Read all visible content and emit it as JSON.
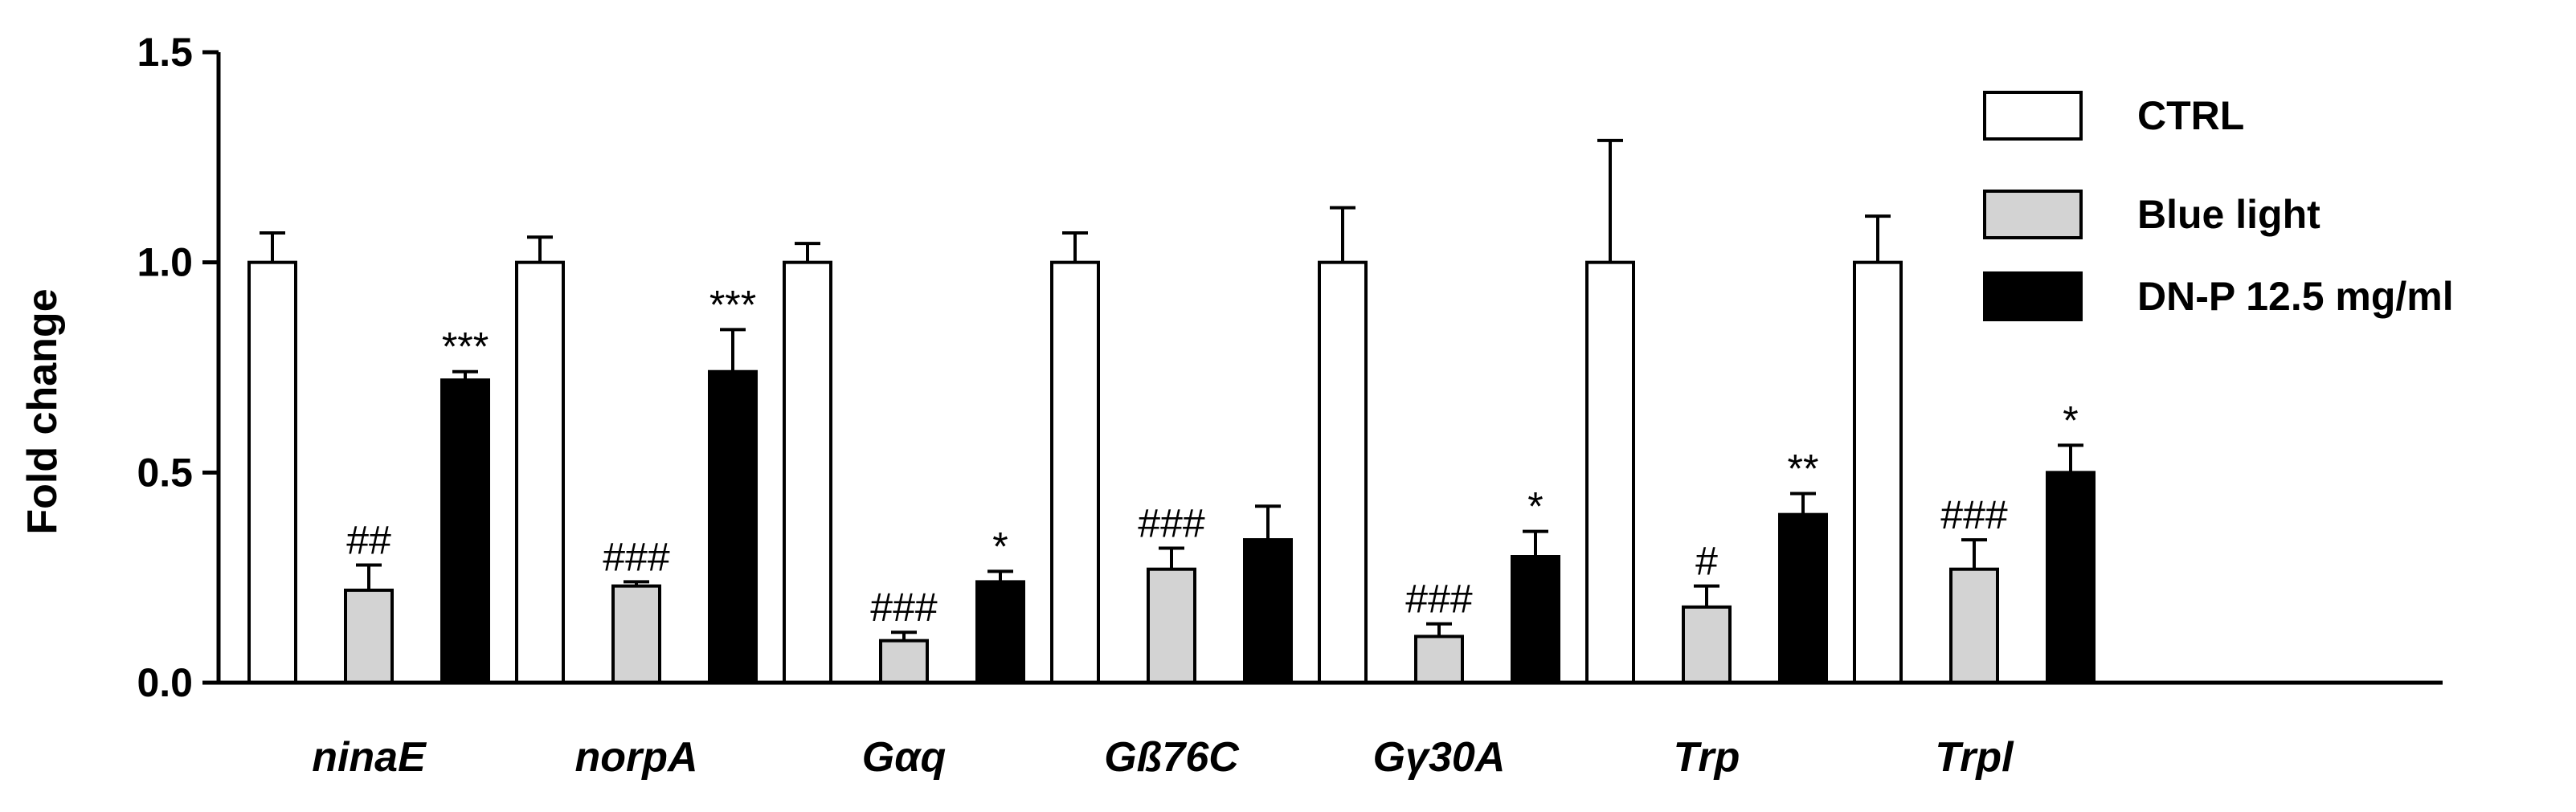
{
  "chart_data": {
    "type": "bar",
    "title": "",
    "xlabel": "",
    "ylabel": "Fold change",
    "ylim": [
      0,
      1.5
    ],
    "yticks": [
      "0.0",
      "0.5",
      "1.0",
      "1.5"
    ],
    "ytick_values": [
      0,
      0.5,
      1.0,
      1.5
    ],
    "grid": false,
    "legend_position": "top-right",
    "categories": [
      "ninaE",
      "norpA",
      "Gαq",
      "Gß76C",
      "Gγ30A",
      "Trp",
      "Trpl"
    ],
    "series": [
      {
        "name": "CTRL",
        "color": "#ffffff",
        "values": [
          1.0,
          1.0,
          1.0,
          1.0,
          1.0,
          1.0,
          1.0
        ],
        "errors": [
          0.07,
          0.06,
          0.045,
          0.07,
          0.13,
          0.29,
          0.11
        ],
        "annotations": [
          "",
          "",
          "",
          "",
          "",
          "",
          ""
        ]
      },
      {
        "name": "Blue light",
        "color": "#d3d3d3",
        "values": [
          0.22,
          0.23,
          0.1,
          0.27,
          0.11,
          0.18,
          0.27
        ],
        "errors": [
          0.06,
          0.01,
          0.02,
          0.05,
          0.03,
          0.05,
          0.07
        ],
        "annotations": [
          "##",
          "###",
          "###",
          "###",
          "###",
          "#",
          "###"
        ]
      },
      {
        "name": "DN-P 12.5 mg/ml",
        "color": "#000000",
        "values": [
          0.72,
          0.74,
          0.24,
          0.34,
          0.3,
          0.4,
          0.5
        ],
        "errors": [
          0.02,
          0.1,
          0.025,
          0.08,
          0.06,
          0.05,
          0.065
        ],
        "annotations": [
          "***",
          "***",
          "*",
          "",
          "*",
          "**",
          "*"
        ]
      }
    ]
  }
}
